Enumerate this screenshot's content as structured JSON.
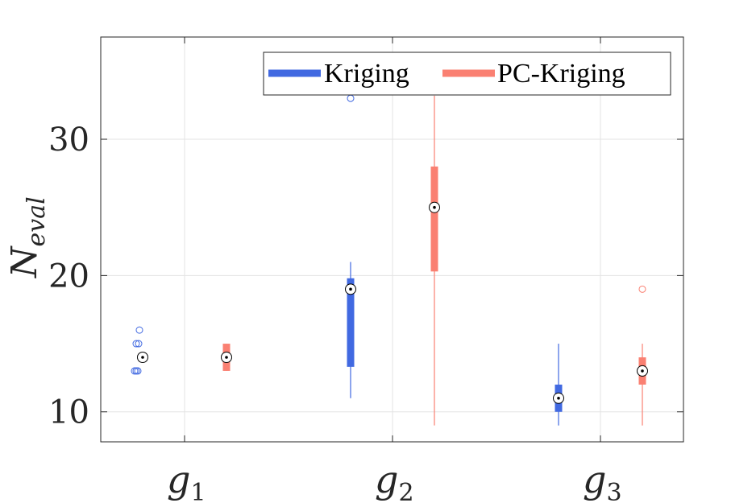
{
  "chart_data": {
    "type": "boxplot",
    "ylabel": {
      "base": "N",
      "subscript": "eval"
    },
    "categories": [
      {
        "base": "g",
        "subscript": "1"
      },
      {
        "base": "g",
        "subscript": "2"
      },
      {
        "base": "g",
        "subscript": "3"
      }
    ],
    "ylim": [
      7.8,
      37.5
    ],
    "yticks": [
      10,
      20,
      30
    ],
    "ytick_labels": [
      "10",
      "20",
      "30"
    ],
    "grid": true,
    "legend": {
      "placement": "top-right"
    },
    "series": [
      {
        "name": "Kriging",
        "color": "#4169E1",
        "boxes": [
          {
            "whisker_low": 14,
            "q1": 14,
            "median": 14,
            "q3": 14,
            "whisker_high": 14,
            "outliers": [
              13,
              13,
              13,
              15,
              15,
              16
            ]
          },
          {
            "whisker_low": 11,
            "q1": 13.3,
            "median": 19,
            "q3": 19.8,
            "whisker_high": 21,
            "outliers": [
              33
            ]
          },
          {
            "whisker_low": 9,
            "q1": 10,
            "median": 11,
            "q3": 12,
            "whisker_high": 15,
            "outliers": []
          }
        ]
      },
      {
        "name": "PC-Kriging",
        "color": "#FA8072",
        "boxes": [
          {
            "whisker_low": 13,
            "q1": 13,
            "median": 14,
            "q3": 15,
            "whisker_high": 15,
            "outliers": []
          },
          {
            "whisker_low": 9,
            "q1": 20.3,
            "median": 25,
            "q3": 28,
            "whisker_high": 33.2,
            "outliers": []
          },
          {
            "whisker_low": 9,
            "q1": 12,
            "median": 13,
            "q3": 14,
            "whisker_high": 15,
            "outliers": [
              19
            ]
          }
        ]
      }
    ]
  }
}
